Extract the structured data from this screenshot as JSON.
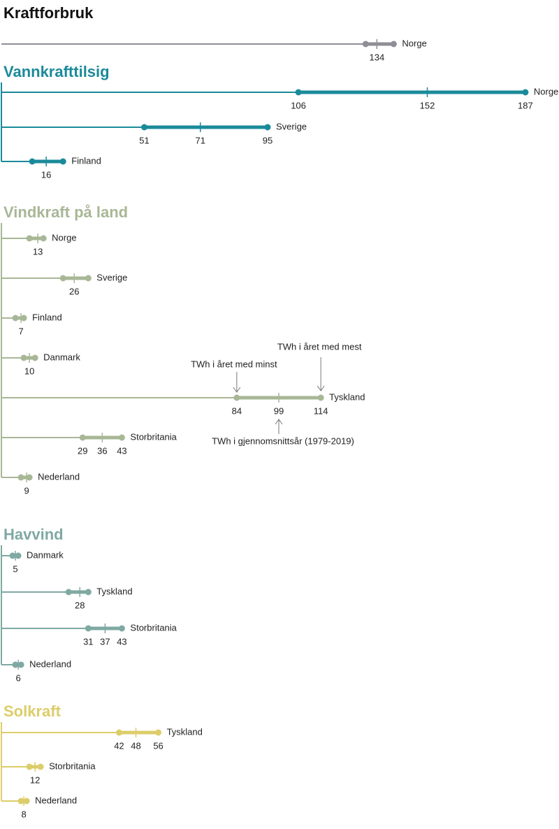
{
  "chart_data": [
    {
      "type": "range",
      "title": "Kraftforbruk",
      "title_color": "#111111",
      "color": "#8e8e96",
      "xlim": [
        0,
        199
      ],
      "rows": [
        {
          "name": "Norge",
          "values": [
            130,
            134,
            140
          ],
          "value_labels": [
            null,
            "134",
            null
          ]
        }
      ]
    },
    {
      "type": "range",
      "title": "Vannkrafttilsig",
      "title_color": "#1a8a9a",
      "color": "#1a8a9a",
      "xlim": [
        0,
        199
      ],
      "rows": [
        {
          "name": "Norge",
          "values": [
            106,
            152,
            187
          ],
          "value_labels": [
            "106",
            "152",
            "187"
          ]
        },
        {
          "name": "Sverige",
          "values": [
            51,
            71,
            95
          ],
          "value_labels": [
            "51",
            "71",
            "95"
          ]
        },
        {
          "name": "Finland",
          "values": [
            11,
            16,
            22
          ],
          "value_labels": [
            null,
            "16",
            null
          ]
        }
      ]
    },
    {
      "type": "range",
      "title": "Vindkraft på land",
      "title_color": "#a8b796",
      "color": "#a8b796",
      "xlim": [
        0,
        199
      ],
      "rows": [
        {
          "name": "Norge",
          "values": [
            10,
            13,
            15
          ],
          "value_labels": [
            null,
            "13",
            null
          ]
        },
        {
          "name": "Sverige",
          "values": [
            22,
            26,
            31
          ],
          "value_labels": [
            null,
            "26",
            null
          ]
        },
        {
          "name": "Finland",
          "values": [
            5,
            7,
            8
          ],
          "value_labels": [
            null,
            "7",
            null
          ]
        },
        {
          "name": "Danmark",
          "values": [
            8,
            10,
            12
          ],
          "value_labels": [
            null,
            "10",
            null
          ]
        },
        {
          "name": "Tyskland",
          "values": [
            84,
            99,
            114
          ],
          "value_labels": [
            "84",
            "99",
            "114"
          ]
        },
        {
          "name": "Storbritania",
          "values": [
            29,
            36,
            43
          ],
          "value_labels": [
            "29",
            "36",
            "43"
          ]
        },
        {
          "name": "Nederland",
          "values": [
            7,
            9,
            10
          ],
          "value_labels": [
            null,
            "9",
            null
          ]
        }
      ],
      "annotations": [
        "TWh i året med minst",
        "TWh i året med mest",
        "TWh i gjennomsnittsår (1979-2019)"
      ]
    },
    {
      "type": "range",
      "title": "Havvind",
      "title_color": "#7fa9a3",
      "color": "#7fa9a3",
      "xlim": [
        0,
        199
      ],
      "rows": [
        {
          "name": "Danmark",
          "values": [
            4,
            5,
            6
          ],
          "value_labels": [
            null,
            "5",
            null
          ]
        },
        {
          "name": "Tyskland",
          "values": [
            24,
            28,
            31
          ],
          "value_labels": [
            null,
            "28",
            null
          ]
        },
        {
          "name": "Storbritania",
          "values": [
            31,
            37,
            43
          ],
          "value_labels": [
            "31",
            "37",
            "43"
          ]
        },
        {
          "name": "Nederland",
          "values": [
            5,
            6,
            7
          ],
          "value_labels": [
            null,
            "6",
            null
          ]
        }
      ]
    },
    {
      "type": "range",
      "title": "Solkraft",
      "title_color": "#dccd6a",
      "color": "#dccd6a",
      "xlim": [
        0,
        199
      ],
      "rows": [
        {
          "name": "Tyskland",
          "values": [
            42,
            48,
            56
          ],
          "value_labels": [
            "42",
            "48",
            "56"
          ]
        },
        {
          "name": "Storbritania",
          "values": [
            10,
            12,
            14
          ],
          "value_labels": [
            null,
            "12",
            null
          ]
        },
        {
          "name": "Nederland",
          "values": [
            7,
            8,
            9
          ],
          "value_labels": [
            null,
            "8",
            null
          ]
        }
      ]
    }
  ]
}
